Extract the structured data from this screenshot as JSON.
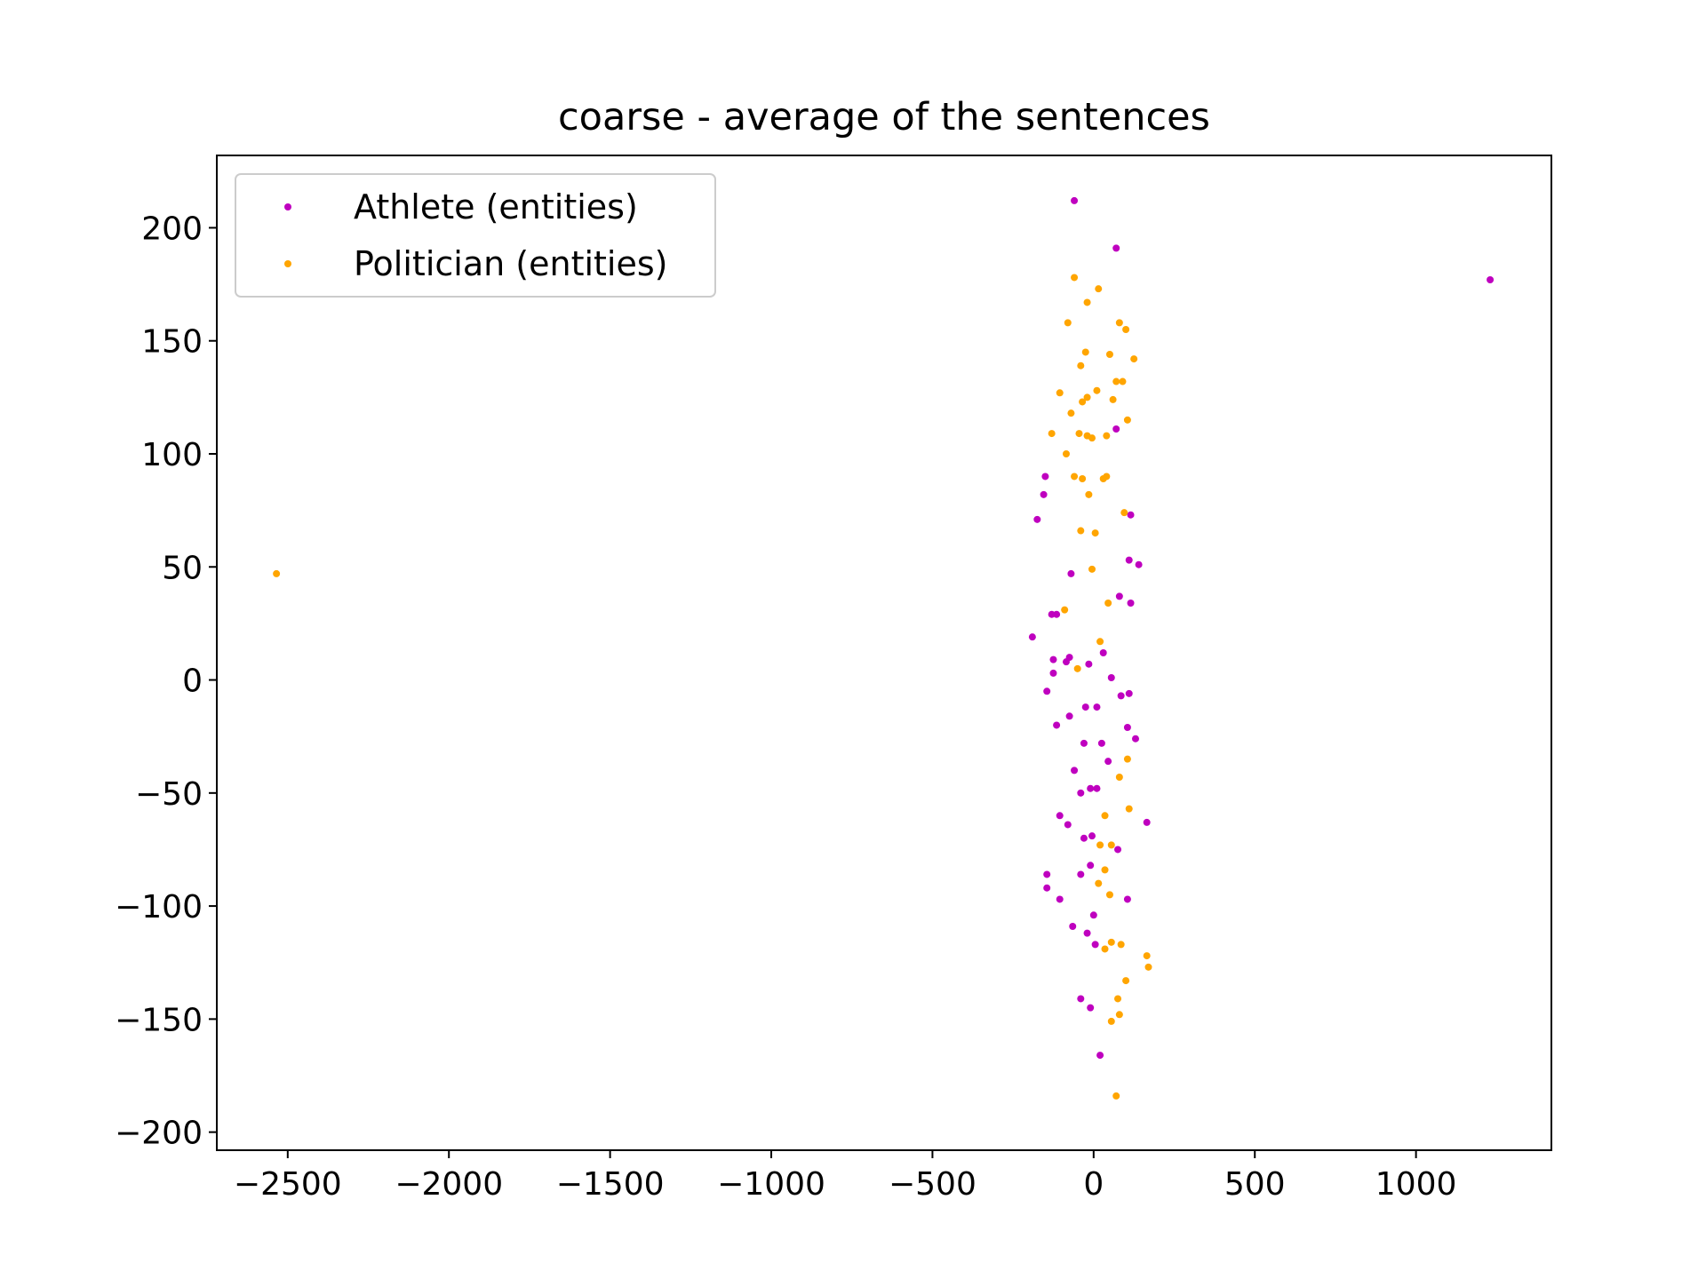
{
  "chart_data": {
    "type": "scatter",
    "title": "coarse - average of the sentences",
    "xlabel": "",
    "ylabel": "",
    "xlim": [
      -2720,
      1420
    ],
    "ylim": [
      -208,
      232
    ],
    "x_ticks": [
      -2500,
      -2000,
      -1500,
      -1000,
      -500,
      0,
      500,
      1000
    ],
    "x_tick_labels": [
      "−2500",
      "−2000",
      "−1500",
      "−1000",
      "−500",
      "0",
      "500",
      "1000"
    ],
    "y_ticks": [
      -200,
      -150,
      -100,
      -50,
      0,
      50,
      100,
      150,
      200
    ],
    "y_tick_labels": [
      "−200",
      "−150",
      "−100",
      "−50",
      "0",
      "50",
      "100",
      "150",
      "200"
    ],
    "grid": false,
    "legend_position": "top-left",
    "series": [
      {
        "name": "Athlete (entities)",
        "color": "#bf00bf",
        "points": [
          [
            1230,
            177
          ],
          [
            -60,
            212
          ],
          [
            70,
            191
          ],
          [
            70,
            111
          ],
          [
            115,
            73
          ],
          [
            -150,
            90
          ],
          [
            -155,
            82
          ],
          [
            -175,
            71
          ],
          [
            110,
            53
          ],
          [
            140,
            51
          ],
          [
            -70,
            47
          ],
          [
            80,
            37
          ],
          [
            115,
            34
          ],
          [
            -130,
            29
          ],
          [
            -115,
            29
          ],
          [
            -190,
            19
          ],
          [
            -75,
            10
          ],
          [
            -125,
            9
          ],
          [
            -85,
            8
          ],
          [
            30,
            12
          ],
          [
            -125,
            3
          ],
          [
            -15,
            7
          ],
          [
            55,
            1
          ],
          [
            110,
            -6
          ],
          [
            85,
            -7
          ],
          [
            -145,
            -5
          ],
          [
            -75,
            -16
          ],
          [
            -115,
            -20
          ],
          [
            -25,
            -12
          ],
          [
            10,
            -12
          ],
          [
            105,
            -21
          ],
          [
            130,
            -26
          ],
          [
            -30,
            -28
          ],
          [
            25,
            -28
          ],
          [
            45,
            -36
          ],
          [
            -60,
            -40
          ],
          [
            -10,
            -48
          ],
          [
            10,
            -48
          ],
          [
            -40,
            -50
          ],
          [
            165,
            -63
          ],
          [
            -105,
            -60
          ],
          [
            -80,
            -64
          ],
          [
            -30,
            -70
          ],
          [
            -5,
            -69
          ],
          [
            75,
            -75
          ],
          [
            -145,
            -86
          ],
          [
            -40,
            -86
          ],
          [
            -10,
            -82
          ],
          [
            -145,
            -92
          ],
          [
            -105,
            -97
          ],
          [
            105,
            -97
          ],
          [
            0,
            -104
          ],
          [
            -65,
            -109
          ],
          [
            -20,
            -112
          ],
          [
            5,
            -117
          ],
          [
            -40,
            -141
          ],
          [
            -10,
            -145
          ],
          [
            20,
            -166
          ]
        ]
      },
      {
        "name": "Politician (entities)",
        "color": "#ffa500",
        "points": [
          [
            -2535,
            47
          ],
          [
            -60,
            178
          ],
          [
            15,
            173
          ],
          [
            -20,
            167
          ],
          [
            -80,
            158
          ],
          [
            80,
            158
          ],
          [
            100,
            155
          ],
          [
            -25,
            145
          ],
          [
            50,
            144
          ],
          [
            125,
            142
          ],
          [
            -40,
            139
          ],
          [
            70,
            132
          ],
          [
            90,
            132
          ],
          [
            -105,
            127
          ],
          [
            10,
            128
          ],
          [
            -20,
            125
          ],
          [
            -35,
            123
          ],
          [
            60,
            124
          ],
          [
            -70,
            118
          ],
          [
            105,
            115
          ],
          [
            -130,
            109
          ],
          [
            -45,
            109
          ],
          [
            -20,
            108
          ],
          [
            -5,
            107
          ],
          [
            40,
            108
          ],
          [
            -85,
            100
          ],
          [
            -60,
            90
          ],
          [
            -35,
            89
          ],
          [
            40,
            90
          ],
          [
            30,
            89
          ],
          [
            -15,
            82
          ],
          [
            95,
            74
          ],
          [
            -40,
            66
          ],
          [
            5,
            65
          ],
          [
            -5,
            49
          ],
          [
            45,
            34
          ],
          [
            -90,
            31
          ],
          [
            20,
            17
          ],
          [
            -50,
            5
          ],
          [
            105,
            -35
          ],
          [
            80,
            -43
          ],
          [
            110,
            -57
          ],
          [
            35,
            -60
          ],
          [
            20,
            -73
          ],
          [
            55,
            -73
          ],
          [
            35,
            -84
          ],
          [
            15,
            -90
          ],
          [
            50,
            -95
          ],
          [
            165,
            -122
          ],
          [
            170,
            -127
          ],
          [
            55,
            -116
          ],
          [
            85,
            -117
          ],
          [
            35,
            -119
          ],
          [
            100,
            -133
          ],
          [
            75,
            -141
          ],
          [
            80,
            -148
          ],
          [
            55,
            -151
          ],
          [
            70,
            -184
          ]
        ]
      }
    ]
  }
}
